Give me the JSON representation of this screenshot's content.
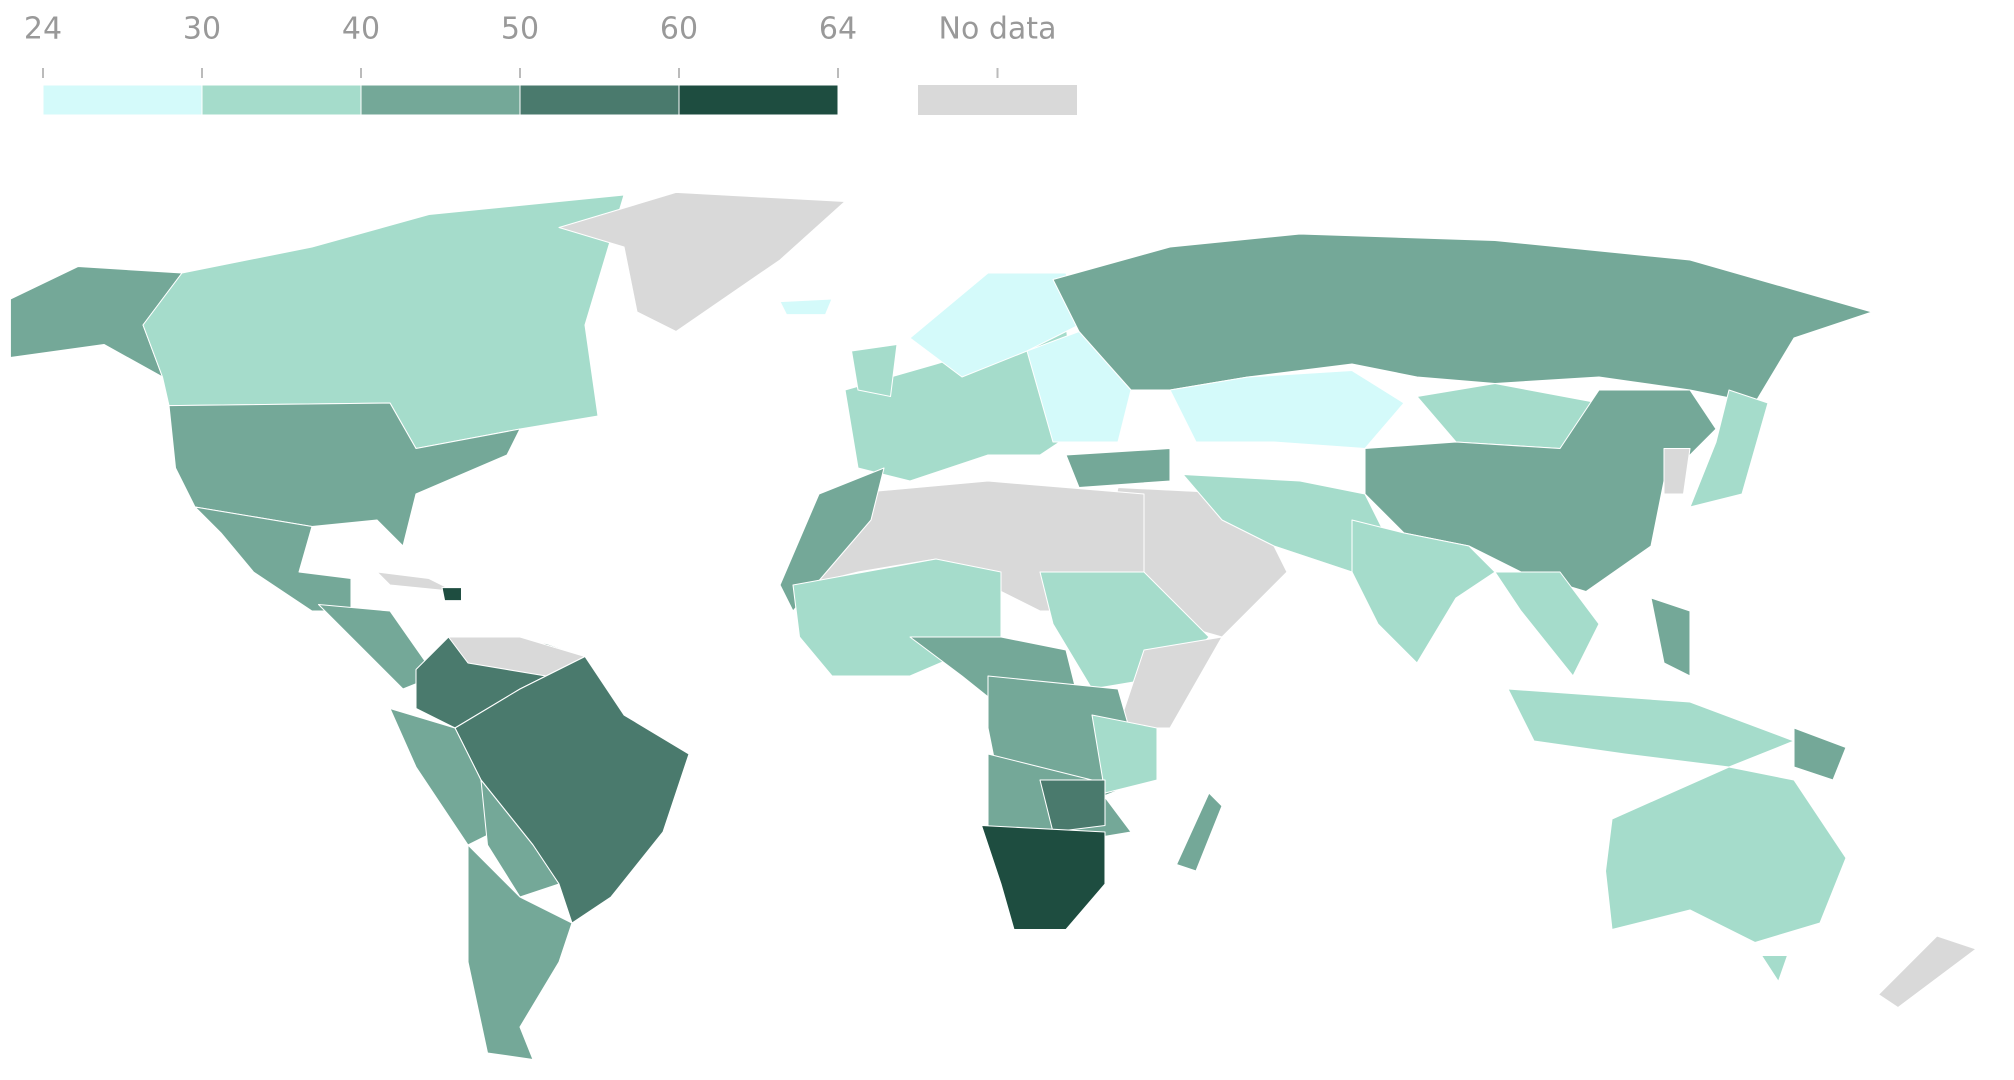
{
  "legend": {
    "ticks": [
      24,
      30,
      40,
      50,
      60,
      64
    ],
    "colors": [
      "#d4fafa",
      "#a5dccb",
      "#74a898",
      "#4a7a6d",
      "#1e4d40"
    ],
    "no_data": {
      "label": "No data",
      "color": "#d9d9d9"
    }
  }
}
